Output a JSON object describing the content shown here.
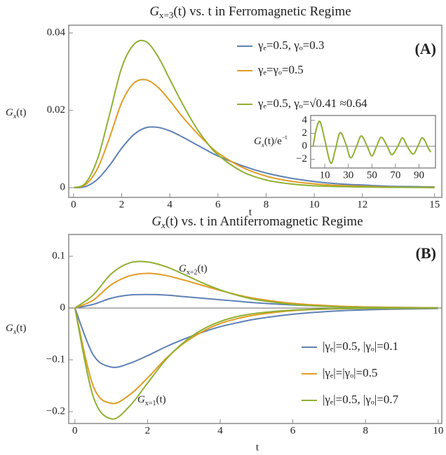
{
  "chart_data": [
    {
      "type": "line",
      "title": {
        "base": "G",
        "sub": "x=3",
        "tail": "(t) vs. t in Ferromagnetic Regime"
      },
      "xlabel": "t",
      "ylabel": {
        "base": "G",
        "sub": "x",
        "tail": "(t)"
      },
      "x": [
        0,
        0.5,
        1,
        1.5,
        2,
        2.5,
        3,
        3.5,
        4,
        4.5,
        5,
        5.5,
        6,
        7,
        8,
        9,
        10,
        11,
        12,
        13,
        14,
        15
      ],
      "xlim": [
        -0.2,
        15.3
      ],
      "ylim": [
        -0.0025,
        0.042
      ],
      "xticks": [
        0,
        2,
        4,
        6,
        8,
        10,
        12,
        15
      ],
      "yticks": [
        0,
        0.02,
        0.04
      ],
      "legend": "top-right",
      "series": [
        {
          "name": "γₑ=0.5, γₒ=0.3",
          "color": "#5e81b5",
          "values": [
            0,
            0.0003,
            0.0022,
            0.0058,
            0.0102,
            0.0137,
            0.0155,
            0.0156,
            0.0147,
            0.0132,
            0.0115,
            0.0098,
            0.0082,
            0.0057,
            0.0038,
            0.0025,
            0.0016,
            0.001,
            0.0007,
            0.0004,
            0.0003,
            0.0002
          ]
        },
        {
          "name": "γₑ=γₒ=0.5",
          "color": "#e19c24",
          "values": [
            0,
            0.0008,
            0.005,
            0.013,
            0.022,
            0.027,
            0.0279,
            0.026,
            0.0225,
            0.0185,
            0.015,
            0.0118,
            0.009,
            0.0053,
            0.003,
            0.0017,
            0.001,
            0.0006,
            0.0004,
            0.0002,
            0.0001,
            0.0001
          ]
        },
        {
          "name": "γₑ=0.5, γₒ=√0.41 ≈0.64",
          "color": "#8fb032",
          "values": [
            0,
            0.0012,
            0.0075,
            0.019,
            0.031,
            0.037,
            0.0378,
            0.034,
            0.028,
            0.022,
            0.0165,
            0.012,
            0.0085,
            0.0042,
            0.002,
            0.001,
            0.0005,
            0.0003,
            0.0002,
            0.0001,
            0.0001,
            0
          ]
        }
      ]
    },
    {
      "type": "line",
      "ylabel": {
        "base": "G",
        "sub": "x",
        "mid": "(t)/e",
        "sup": "−t"
      },
      "x": [
        0,
        3,
        6,
        10,
        15,
        19,
        23,
        28,
        32,
        37,
        41,
        46,
        50,
        54,
        58,
        63,
        67,
        72,
        76,
        80,
        85,
        89,
        93,
        98,
        100
      ],
      "xlim": [
        -2,
        104
      ],
      "ylim": [
        -3.35,
        4.75
      ],
      "xticks": [
        10,
        30,
        50,
        70,
        90
      ],
      "yticks": [
        {
          "value": -2,
          "label": "−2"
        },
        0,
        2,
        4
      ],
      "series": [
        {
          "color": "#8fb032",
          "values": [
            0,
            2.8,
            3.8,
            1,
            -2.6,
            -0.5,
            2.1,
            0.3,
            -1.8,
            0,
            1.6,
            0,
            -1.5,
            0,
            1.4,
            0,
            -1.3,
            0,
            1.3,
            0,
            -1.2,
            0,
            1.3,
            -0.3,
            -0.9
          ]
        }
      ]
    },
    {
      "type": "line",
      "title": {
        "base": "G",
        "sub": "x",
        "tail": "(t) vs. t in Antiferromagnetic Regime"
      },
      "xlabel": "t",
      "ylabel": {
        "base": "G",
        "sub": "x",
        "tail": "(t)"
      },
      "x": [
        0,
        0.5,
        1,
        1.5,
        2,
        2.5,
        3,
        3.5,
        4,
        4.5,
        5,
        6,
        7,
        8,
        9,
        10
      ],
      "xlim": [
        -0.17,
        10.1
      ],
      "ylim": [
        -0.223,
        0.142
      ],
      "xticks": [
        0,
        2,
        4,
        6,
        8,
        10
      ],
      "yticks": [
        {
          "value": -0.2,
          "label": "−0.2"
        },
        {
          "value": -0.1,
          "label": "−0.1"
        },
        0,
        0.1
      ],
      "legend": "bottom-right",
      "annotations": [
        {
          "base": "G",
          "sub": "x=2",
          "tail": "(t)"
        },
        {
          "base": "G",
          "sub": "x=1",
          "tail": "(t)"
        }
      ],
      "series": [
        {
          "name": "|γₑ|=0.5, |γₒ|=0.1",
          "color": "#5e81b5",
          "values": [
            0,
            -0.09,
            -0.114,
            -0.107,
            -0.092,
            -0.075,
            -0.06,
            -0.047,
            -0.036,
            -0.028,
            -0.021,
            -0.012,
            -0.0065,
            -0.0035,
            -0.002,
            -0.001
          ]
        },
        {
          "name": "|γₑ|=|γₒ|=0.5",
          "color": "#e19c24",
          "values": [
            0,
            -0.15,
            -0.184,
            -0.168,
            -0.135,
            -0.098,
            -0.068,
            -0.046,
            -0.03,
            -0.02,
            -0.013,
            -0.005,
            -0.002,
            -0.0008,
            -0.0003,
            -0.0001
          ]
        },
        {
          "name": "|γₑ|=0.5, |γₒ|=0.7",
          "color": "#8fb032",
          "values": [
            0,
            -0.17,
            -0.214,
            -0.19,
            -0.145,
            -0.1,
            -0.066,
            -0.042,
            -0.026,
            -0.016,
            -0.01,
            -0.004,
            -0.0015,
            -0.0006,
            -0.0002,
            0
          ]
        },
        {
          "color": "#5e81b5",
          "values": [
            0,
            0.007,
            0.019,
            0.025,
            0.026,
            0.025,
            0.022,
            0.019,
            0.016,
            0.013,
            0.01,
            0.006,
            0.0035,
            0.002,
            0.0011,
            0.0006
          ]
        },
        {
          "color": "#e19c24",
          "values": [
            0,
            0.015,
            0.045,
            0.062,
            0.067,
            0.063,
            0.054,
            0.044,
            0.034,
            0.025,
            0.018,
            0.009,
            0.0045,
            0.002,
            0.001,
            0.0004
          ]
        },
        {
          "color": "#8fb032",
          "values": [
            0,
            0.025,
            0.066,
            0.087,
            0.089,
            0.08,
            0.065,
            0.049,
            0.035,
            0.024,
            0.016,
            0.007,
            0.003,
            0.001,
            0.0004,
            0.0001
          ]
        }
      ]
    }
  ]
}
